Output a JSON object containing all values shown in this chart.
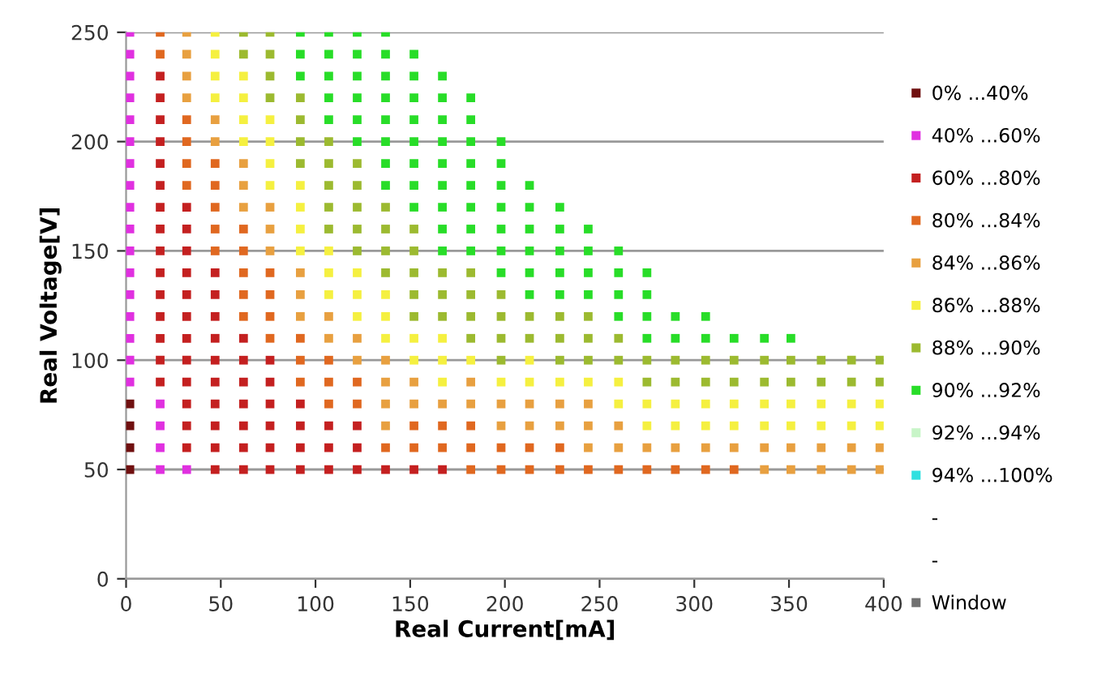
{
  "chart_data": {
    "type": "scatter",
    "xlabel": "Real Current[mA]",
    "ylabel": "Real Voltage[V]",
    "xlim": [
      0,
      400
    ],
    "xticks": [
      0,
      50,
      100,
      150,
      200,
      250,
      300,
      350,
      400
    ],
    "ylim": [
      0,
      250
    ],
    "yticks": [
      0,
      50,
      100,
      150,
      200,
      250
    ],
    "grid": "y",
    "legend": "right",
    "marker": "square",
    "series": [
      {
        "name": "0% ...40%",
        "color": "#701010",
        "x": [
          2,
          2,
          2,
          2
        ],
        "values": [
          50,
          60,
          70,
          80
        ]
      },
      {
        "name": "40% ...60%",
        "color": "#e030e0",
        "x": [
          2,
          2,
          2,
          2,
          2,
          2,
          2,
          2,
          2,
          2,
          2,
          2,
          2,
          2,
          2,
          2,
          2,
          18,
          18,
          18,
          18,
          32
        ],
        "values": [
          90,
          100,
          110,
          120,
          130,
          140,
          150,
          160,
          170,
          180,
          190,
          200,
          210,
          220,
          230,
          240,
          250,
          50,
          60,
          70,
          80,
          50
        ]
      },
      {
        "name": "60% ...80%",
        "color": "#c42020",
        "x": [
          18,
          18,
          18,
          18,
          18,
          18,
          18,
          18,
          18,
          18,
          18,
          18,
          18,
          18,
          18,
          32,
          32,
          32,
          32,
          32,
          32,
          32,
          32,
          32,
          32,
          32,
          32,
          47,
          47,
          47,
          47,
          47,
          47,
          47,
          47,
          47,
          47,
          62,
          62,
          62,
          62,
          62,
          62,
          62,
          76,
          76,
          76,
          76,
          76,
          76,
          92,
          92,
          92,
          92,
          107,
          107,
          107,
          122,
          122,
          122,
          137,
          152,
          167
        ],
        "values": [
          90,
          100,
          110,
          120,
          130,
          140,
          150,
          160,
          170,
          180,
          190,
          200,
          210,
          220,
          230,
          60,
          70,
          80,
          90,
          100,
          110,
          120,
          130,
          140,
          150,
          160,
          170,
          50,
          60,
          70,
          80,
          90,
          100,
          110,
          120,
          130,
          140,
          50,
          60,
          70,
          80,
          90,
          100,
          110,
          50,
          60,
          70,
          80,
          90,
          100,
          50,
          60,
          70,
          80,
          50,
          60,
          70,
          50,
          60,
          70,
          50,
          50,
          50
        ]
      },
      {
        "name": "80% ...84%",
        "color": "#e06820",
        "x": [
          18,
          18,
          32,
          32,
          32,
          32,
          47,
          47,
          47,
          47,
          47,
          62,
          62,
          62,
          62,
          62,
          76,
          76,
          76,
          76,
          92,
          92,
          92,
          107,
          107,
          107,
          122,
          122,
          137,
          152,
          152,
          167,
          167,
          182,
          182,
          182,
          198,
          198,
          213,
          213,
          229,
          229,
          244,
          260,
          275,
          290,
          306,
          321
        ],
        "values": [
          240,
          250,
          180,
          190,
          200,
          210,
          150,
          160,
          170,
          180,
          190,
          120,
          130,
          140,
          150,
          160,
          110,
          120,
          130,
          140,
          90,
          100,
          110,
          80,
          90,
          100,
          80,
          90,
          60,
          60,
          70,
          60,
          70,
          50,
          60,
          70,
          50,
          60,
          50,
          60,
          50,
          60,
          50,
          50,
          50,
          50,
          50,
          50
        ]
      },
      {
        "name": "84% ...86%",
        "color": "#e8a040",
        "x": [
          32,
          32,
          32,
          32,
          47,
          47,
          62,
          62,
          62,
          76,
          76,
          76,
          92,
          92,
          92,
          107,
          107,
          122,
          122,
          137,
          137,
          137,
          137,
          152,
          152,
          167,
          182,
          182,
          198,
          198,
          213,
          213,
          229,
          229,
          244,
          244,
          244,
          260,
          260,
          275,
          290,
          306,
          321,
          337,
          337,
          351,
          351,
          367,
          367,
          383,
          383,
          398,
          398
        ],
        "values": [
          220,
          230,
          240,
          250,
          200,
          210,
          170,
          180,
          190,
          150,
          160,
          170,
          120,
          130,
          140,
          110,
          120,
          100,
          110,
          70,
          80,
          90,
          100,
          80,
          90,
          80,
          80,
          90,
          70,
          80,
          70,
          80,
          70,
          80,
          60,
          70,
          80,
          60,
          70,
          60,
          60,
          60,
          60,
          50,
          60,
          50,
          60,
          50,
          60,
          50,
          60,
          50,
          60
        ]
      },
      {
        "name": "86% ...88%",
        "color": "#f5f040",
        "x": [
          47,
          47,
          47,
          47,
          62,
          62,
          62,
          62,
          76,
          76,
          76,
          76,
          92,
          92,
          92,
          92,
          107,
          107,
          107,
          122,
          122,
          122,
          137,
          137,
          137,
          152,
          152,
          167,
          167,
          167,
          182,
          198,
          213,
          213,
          229,
          244,
          260,
          260,
          275,
          275,
          290,
          290,
          306,
          306,
          321,
          321,
          337,
          337,
          351,
          351,
          367,
          367,
          383,
          383,
          398,
          398
        ],
        "values": [
          220,
          230,
          240,
          250,
          200,
          210,
          220,
          230,
          180,
          190,
          200,
          210,
          150,
          160,
          170,
          180,
          130,
          140,
          150,
          120,
          130,
          140,
          110,
          120,
          130,
          100,
          110,
          90,
          100,
          110,
          100,
          90,
          90,
          100,
          90,
          90,
          80,
          90,
          70,
          80,
          70,
          80,
          70,
          80,
          70,
          80,
          70,
          80,
          70,
          80,
          70,
          80,
          70,
          80,
          70,
          80
        ]
      },
      {
        "name": "88% ...90%",
        "color": "#9cba30",
        "x": [
          62,
          62,
          76,
          76,
          76,
          76,
          92,
          92,
          92,
          92,
          107,
          107,
          107,
          107,
          107,
          122,
          122,
          122,
          122,
          122,
          137,
          137,
          137,
          137,
          152,
          152,
          152,
          152,
          152,
          167,
          167,
          167,
          182,
          182,
          182,
          182,
          198,
          198,
          198,
          198,
          213,
          213,
          229,
          229,
          229,
          244,
          244,
          244,
          260,
          260,
          275,
          275,
          290,
          290,
          306,
          306,
          321,
          321,
          337,
          337,
          351,
          351,
          367,
          367,
          383,
          383,
          398,
          398
        ],
        "values": [
          240,
          250,
          220,
          230,
          240,
          250,
          190,
          200,
          210,
          220,
          160,
          170,
          180,
          190,
          200,
          150,
          160,
          170,
          180,
          190,
          140,
          150,
          160,
          170,
          120,
          130,
          140,
          150,
          160,
          120,
          130,
          140,
          110,
          120,
          130,
          140,
          100,
          110,
          120,
          130,
          110,
          120,
          100,
          110,
          120,
          100,
          110,
          120,
          100,
          110,
          90,
          100,
          90,
          100,
          90,
          100,
          90,
          100,
          90,
          100,
          90,
          100,
          90,
          100,
          90,
          100,
          90,
          100
        ]
      },
      {
        "name": "90% ...92%",
        "color": "#28dd28",
        "x": [
          92,
          92,
          92,
          107,
          107,
          107,
          107,
          107,
          122,
          122,
          122,
          122,
          122,
          122,
          137,
          137,
          137,
          137,
          137,
          137,
          137,
          137,
          152,
          152,
          152,
          152,
          152,
          152,
          152,
          152,
          167,
          167,
          167,
          167,
          167,
          167,
          167,
          167,
          167,
          182,
          182,
          182,
          182,
          182,
          182,
          182,
          182,
          198,
          198,
          198,
          198,
          198,
          198,
          198,
          213,
          213,
          213,
          213,
          213,
          213,
          229,
          229,
          229,
          229,
          229,
          244,
          244,
          244,
          244,
          260,
          260,
          260,
          260,
          275,
          275,
          275,
          275,
          290,
          290,
          306,
          306,
          321,
          337,
          351
        ],
        "values": [
          230,
          240,
          250,
          210,
          220,
          230,
          240,
          250,
          200,
          210,
          220,
          230,
          240,
          250,
          180,
          190,
          200,
          210,
          220,
          230,
          240,
          250,
          170,
          180,
          190,
          200,
          210,
          220,
          230,
          240,
          150,
          160,
          170,
          180,
          190,
          200,
          210,
          220,
          230,
          150,
          160,
          170,
          180,
          190,
          200,
          210,
          220,
          140,
          150,
          160,
          170,
          180,
          190,
          200,
          130,
          140,
          150,
          160,
          170,
          180,
          130,
          140,
          150,
          160,
          170,
          130,
          140,
          150,
          160,
          120,
          130,
          140,
          150,
          110,
          120,
          130,
          140,
          110,
          120,
          110,
          120,
          110,
          110,
          110
        ]
      },
      {
        "name": "92% ...94%",
        "color": "#c8f5c8"
      },
      {
        "name": "94% ...100%",
        "color": "#30e0e0"
      },
      {
        "name": "-"
      },
      {
        "name": "-"
      },
      {
        "name": "Window",
        "color": "#707070"
      }
    ]
  }
}
